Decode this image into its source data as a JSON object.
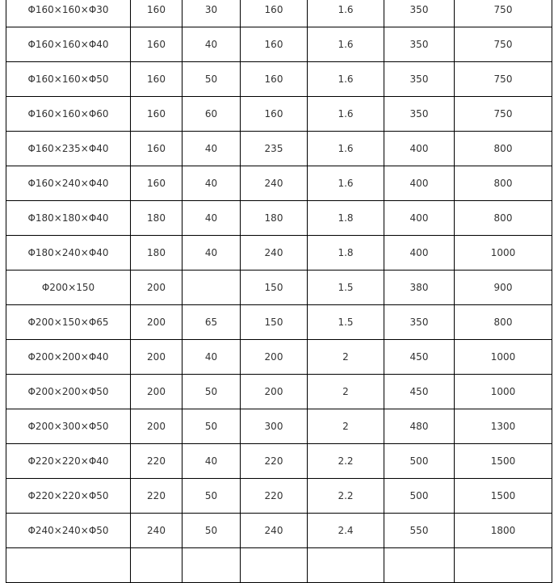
{
  "table": {
    "rows": [
      [
        "Φ160×160×Φ30",
        "160",
        "30",
        "160",
        "1.6",
        "350",
        "750"
      ],
      [
        "Φ160×160×Φ40",
        "160",
        "40",
        "160",
        "1.6",
        "350",
        "750"
      ],
      [
        "Φ160×160×Φ50",
        "160",
        "50",
        "160",
        "1.6",
        "350",
        "750"
      ],
      [
        "Φ160×160×Φ60",
        "160",
        "60",
        "160",
        "1.6",
        "350",
        "750"
      ],
      [
        "Φ160×235×Φ40",
        "160",
        "40",
        "235",
        "1.6",
        "400",
        "800"
      ],
      [
        "Φ160×240×Φ40",
        "160",
        "40",
        "240",
        "1.6",
        "400",
        "800"
      ],
      [
        "Φ180×180×Φ40",
        "180",
        "40",
        "180",
        "1.8",
        "400",
        "800"
      ],
      [
        "Φ180×240×Φ40",
        "180",
        "40",
        "240",
        "1.8",
        "400",
        "1000"
      ],
      [
        "Φ200×150",
        "200",
        "",
        "150",
        "1.5",
        "380",
        "900"
      ],
      [
        "Φ200×150×Φ65",
        "200",
        "65",
        "150",
        "1.5",
        "350",
        "800"
      ],
      [
        "Φ200×200×Φ40",
        "200",
        "40",
        "200",
        "2",
        "450",
        "1000"
      ],
      [
        "Φ200×200×Φ50",
        "200",
        "50",
        "200",
        "2",
        "450",
        "1000"
      ],
      [
        "Φ200×300×Φ50",
        "200",
        "50",
        "300",
        "2",
        "480",
        "1300"
      ],
      [
        "Φ220×220×Φ40",
        "220",
        "40",
        "220",
        "2.2",
        "500",
        "1500"
      ],
      [
        "Φ220×220×Φ50",
        "220",
        "50",
        "220",
        "2.2",
        "500",
        "1500"
      ],
      [
        "Φ240×240×Φ50",
        "240",
        "50",
        "240",
        "2.4",
        "550",
        "1800"
      ],
      [
        "",
        "",
        "",
        "",
        "",
        "",
        ""
      ]
    ]
  }
}
